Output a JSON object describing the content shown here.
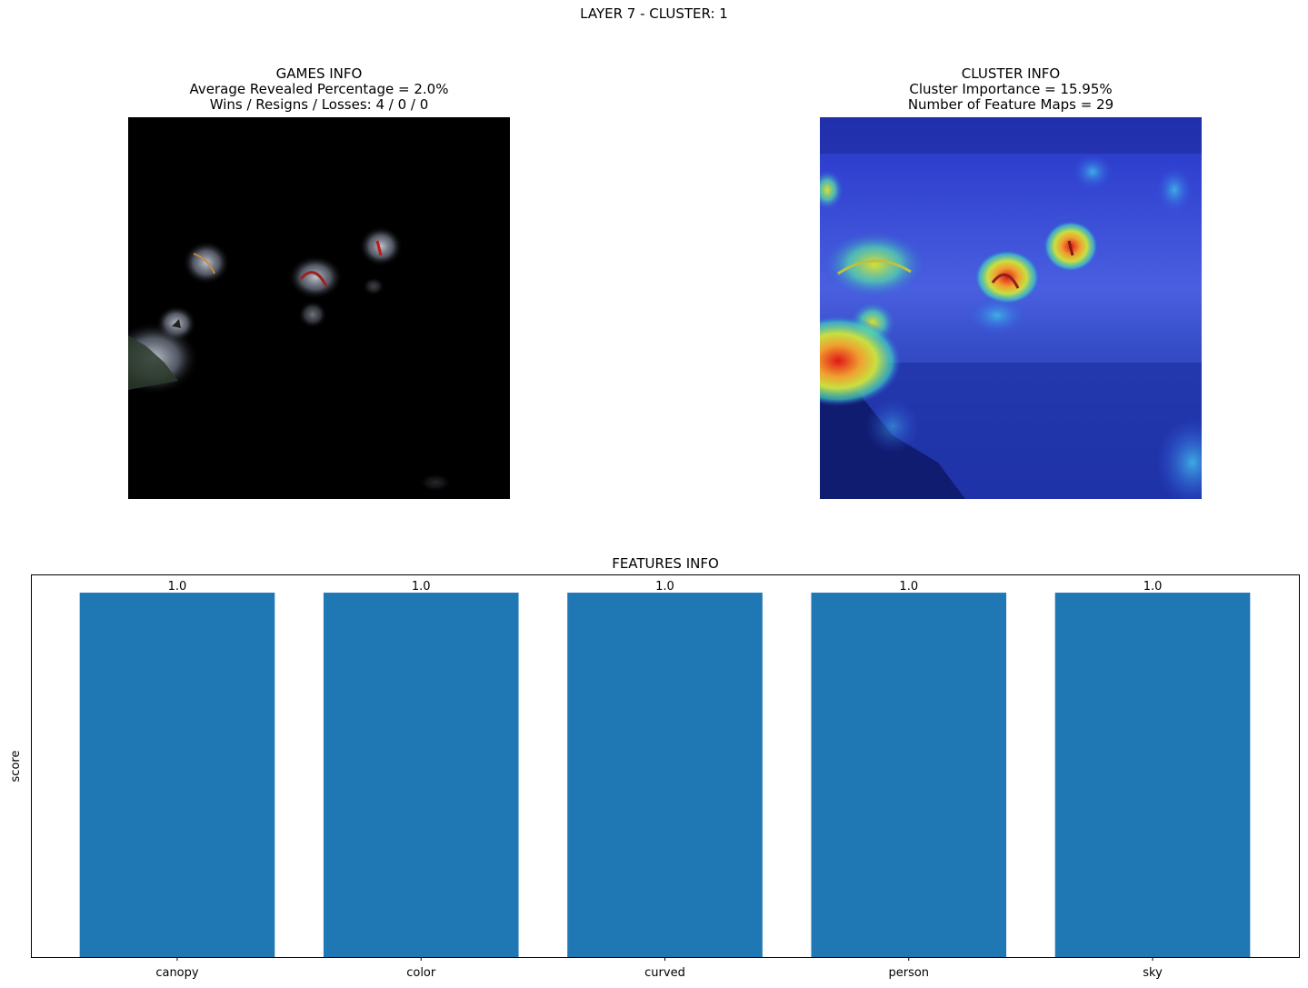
{
  "figure_title": "LAYER 7 - CLUSTER: 1",
  "games_info": {
    "title": "GAMES INFO",
    "line1": "Average Revealed Percentage = 2.0%",
    "line2": "Wins / Resigns / Losses: 4 / 0 / 0"
  },
  "cluster_info": {
    "title": "CLUSTER INFO",
    "line1": "Cluster Importance = 15.95%",
    "line2": "Number of Feature Maps = 29"
  },
  "chart_data": {
    "type": "bar",
    "title": "FEATURES INFO",
    "xlabel": "",
    "ylabel": "score",
    "categories": [
      "canopy",
      "color",
      "curved",
      "person",
      "sky"
    ],
    "values": [
      1.0,
      1.0,
      1.0,
      1.0,
      1.0
    ],
    "value_labels": [
      "1.0",
      "1.0",
      "1.0",
      "1.0",
      "1.0"
    ],
    "ylim": [
      0,
      1.05
    ],
    "bar_color": "#1f77b4",
    "y_ticks_visible": false
  }
}
